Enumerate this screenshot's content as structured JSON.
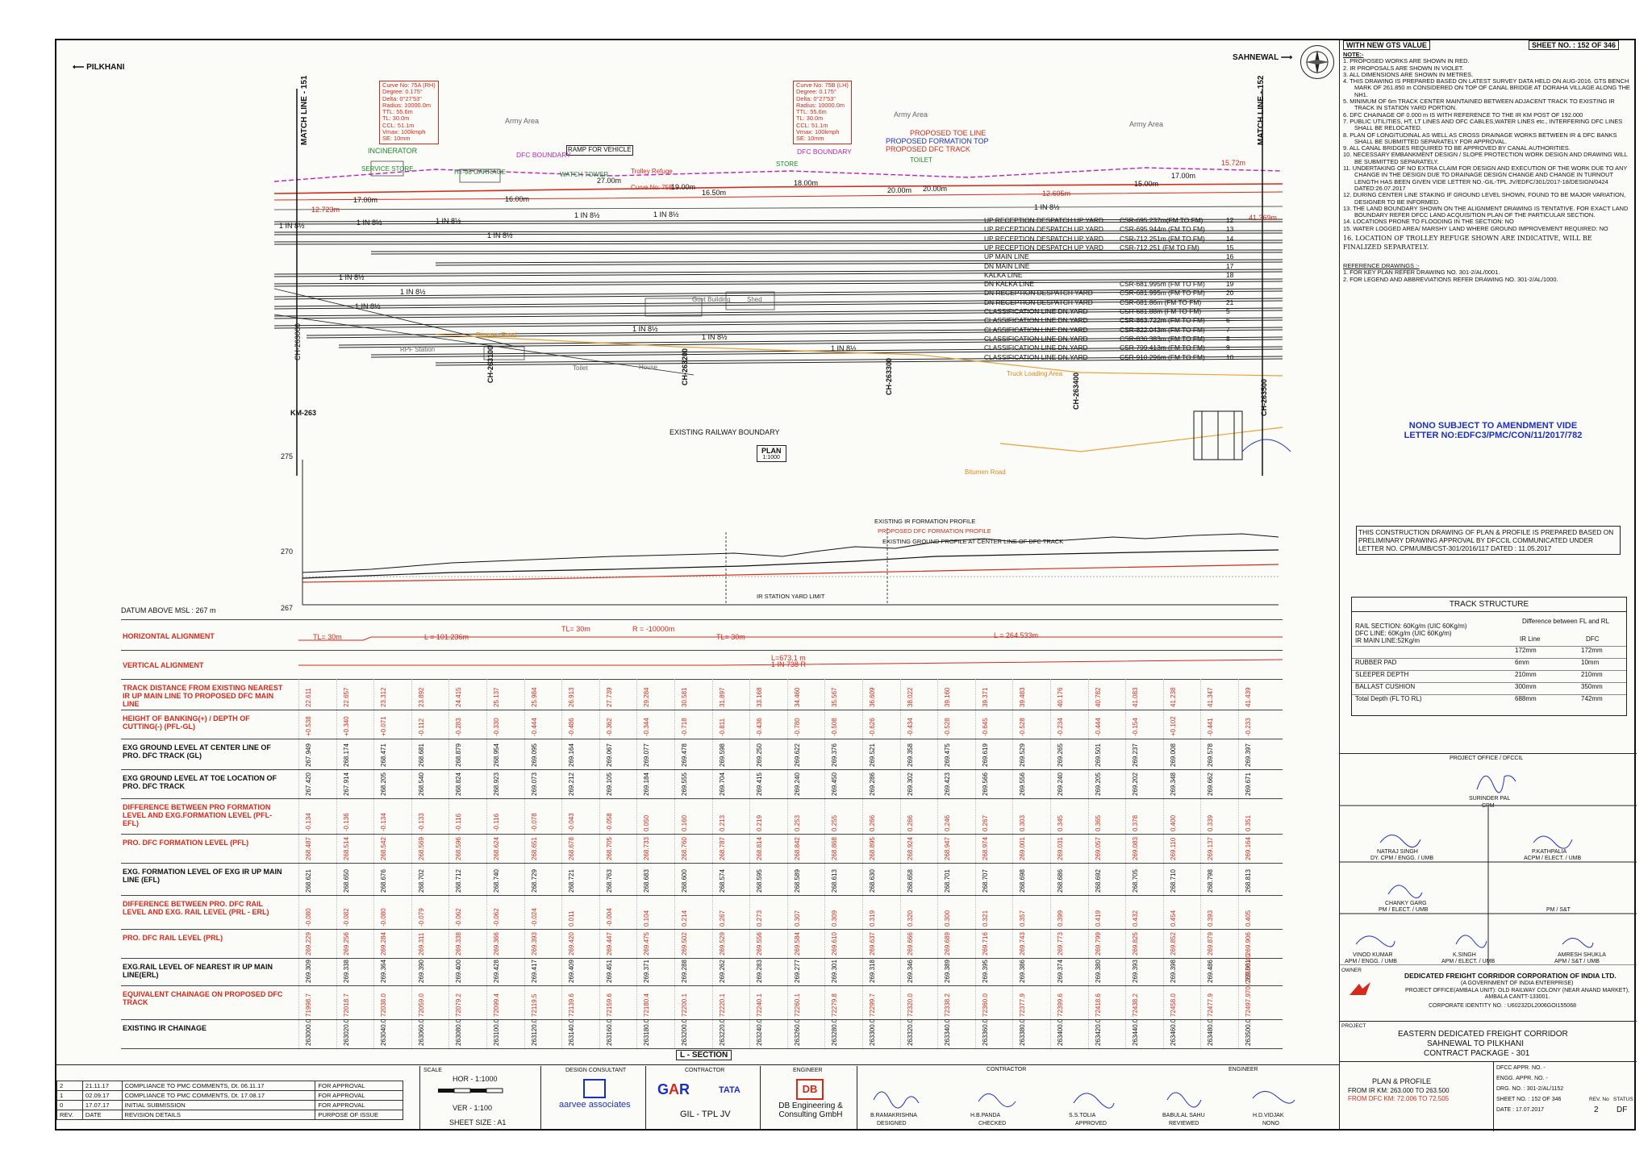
{
  "header": {
    "direction_left": "PILKHANI",
    "direction_right": "SAHNEWAL",
    "gts_label": "WITH NEW GTS VALUE",
    "sheet_no": "SHEET NO. : 152 OF 346"
  },
  "plan": {
    "match_line_left": "MATCH LINE - 151",
    "match_line_right": "MATCH LINE - 152",
    "km_marker": "KM-263",
    "plan_label": "PLAN",
    "plan_scale": "1:1000",
    "existing_boundary": "EXISTING RAILWAY BOUNDARY",
    "curve_a": [
      "Curve No: 75A (RH)",
      "Degree: 0.175°",
      "Delta: 0°27'53\"",
      "Radius: 10000.0m",
      "TTL: 55.6m",
      "TL: 30.0m",
      "CCL: 51.1m",
      "Vmax: 100kmph",
      "SE: 10mm"
    ],
    "curve_b": [
      "Curve No: 75B (LH)",
      "Degree: 0.175°",
      "Delta: 0°27'53\"",
      "Radius: 10000.0m",
      "TTL: 55.6m",
      "TL: 30.0m",
      "CCL: 51.1m",
      "Vmax: 100kmph",
      "SE: 10mm"
    ],
    "labels": [
      "INCINERATOR",
      "SERVICE STORE",
      "HT-98 GARRAGE",
      "RAMP FOR VEHICLE",
      "WATCH TOWER",
      "Trolley Refuge",
      "STORE",
      "DFC BOUNDARY",
      "PROPOSED TOE LINE",
      "PROPOSED FORMATION TOP",
      "PROPOSED DFC TRACK",
      "TOILET",
      "Army Area",
      "Fence",
      "Curve No: 75B",
      "RPF Station",
      "Toilet",
      "House",
      "Truck Loading Area",
      "Bitumen Road",
      "Govt Building",
      "Shed"
    ],
    "dims": [
      "12.723m",
      "17.00m",
      "16.00m",
      "27.00m",
      "19.00m",
      "16.50m",
      "18.00m",
      "20.00m",
      "20.00m",
      "15.00m",
      "17.00m",
      "12.605m",
      "15.72m",
      "41.369m"
    ],
    "tracks": [
      {
        "name": "UP RECEPTION DESPATCH UP YARD",
        "csr": "CSR-695.237m(FM TO FM)",
        "no": "12"
      },
      {
        "name": "UP RECEPTION DESPATCH UP YARD",
        "csr": "CSR-695.944m (FM TO FM)",
        "no": "13"
      },
      {
        "name": "UP RECEPTION DESPATCH UP YARD",
        "csr": "CSR-712.251m (FM TO FM)",
        "no": "14"
      },
      {
        "name": "UP RECEPTION DESPATCH UP YARD",
        "csr": "CSR-712.251 (FM TO FM)",
        "no": "15"
      },
      {
        "name": "UP MAIN LINE",
        "csr": "",
        "no": "16"
      },
      {
        "name": "DN MAIN LINE",
        "csr": "",
        "no": "17"
      },
      {
        "name": "KALKA LINE",
        "csr": "",
        "no": "18"
      },
      {
        "name": "DN KALKA LINE",
        "csr": "CSR-681.995m (FM TO FM)",
        "no": "19"
      },
      {
        "name": "DN RECEPTION DESPATCH YARD",
        "csr": "CSR-681.995m (FM TO FM)",
        "no": "20"
      },
      {
        "name": "DN RECEPTION DESPATCH YARD",
        "csr": "CSR-681.86m (FM TO FM)",
        "no": "21"
      },
      {
        "name": "CLASSIFICATION LINE DN.YARD",
        "csr": "CSR-681.88m (FM TO FM)",
        "no": "5"
      },
      {
        "name": "CLASSIFICATION LINE DN.YARD",
        "csr": "CSR-863.722m (FM TO FM)",
        "no": "6"
      },
      {
        "name": "CLASSIFICATION LINE DN.YARD",
        "csr": "CSR-822.043m (FM TO FM)",
        "no": "7"
      },
      {
        "name": "CLASSIFICATION LINE DN.YARD",
        "csr": "CSR-836.383m (FM TO FM)",
        "no": "8"
      },
      {
        "name": "CLASSIFICATION LINE DN.YARD",
        "csr": "CSR-799.413m (FM TO FM)",
        "no": "9"
      },
      {
        "name": "CLASSIFICATION LINE DN.YARD",
        "csr": "CSR-910.296m (FM TO FM)",
        "no": "10"
      }
    ],
    "chainage_top": [
      "CH-263000",
      "CH-263100",
      "CH-263200",
      "CH-263300",
      "CH-263400",
      "CH-263500"
    ],
    "turnout": "1 IN 8½"
  },
  "profile": {
    "levels": [
      "275",
      "270",
      "267"
    ],
    "datum": "DATUM ABOVE MSL : 267 m",
    "legend": [
      "EXISTING IR FORMATION PROFILE",
      "PROPOSED DFC FORMATION PROFILE",
      "EXISTING GROUND PROFILE AT CENTER LINE OF DFC TRACK"
    ],
    "yard_limit": "IR STATION YARD LIMIT"
  },
  "alignment": {
    "horizontal_label": "HORIZONTAL ALIGNMENT",
    "vertical_label": "VERTICAL ALIGNMENT",
    "h_items": [
      "TL= 30m",
      "L = 101.236m",
      "TL= 30m",
      "R = -10000m",
      "TL= 30m",
      "L = 264.533m"
    ],
    "v_items": [
      "L=673.1 m",
      "1 IN 738 R"
    ]
  },
  "rows": [
    {
      "label": "TRACK DISTANCE FROM EXISTING NEAREST IR UP MAIN LINE TO PROPOSED DFC MAIN LINE",
      "color": "#d42a1c",
      "values": [
        "22.611",
        "22.657",
        "23.312",
        "23.892",
        "24.415",
        "25.137",
        "25.984",
        "26.913",
        "27.739",
        "29.284",
        "30.581",
        "31.897",
        "33.168",
        "34.460",
        "35.567",
        "36.609",
        "38.022",
        "39.160",
        "39.371",
        "39.483",
        "40.176",
        "40.782",
        "41.083",
        "41.238",
        "41.347",
        "41.439"
      ]
    },
    {
      "label": "HEIGHT OF BANKING(+) / DEPTH OF CUTTING(-) (PFL-GL)",
      "color": "#d42a1c",
      "values": [
        "+0.538",
        "+0.340",
        "+0.071",
        "-0.112",
        "-0.283",
        "-0.330",
        "-0.444",
        "-0.486",
        "-0.362",
        "-0.344",
        "-0.718",
        "-0.811",
        "-0.436",
        "-0.780",
        "-0.508",
        "-0.626",
        "-0.434",
        "-0.528",
        "-0.645",
        "-0.528",
        "-0.234",
        "-0.444",
        "-0.154",
        "+0.102",
        "-0.441",
        "-0.233"
      ]
    },
    {
      "label": "EXG GROUND LEVEL AT CENTER LINE OF PRO. DFC TRACK (GL)",
      "color": "#111111",
      "values": [
        "267.949",
        "268.174",
        "268.471",
        "268.681",
        "268.879",
        "268.954",
        "269.095",
        "269.164",
        "269.067",
        "269.077",
        "269.478",
        "269.598",
        "269.250",
        "269.622",
        "269.376",
        "269.521",
        "269.358",
        "269.475",
        "269.619",
        "269.529",
        "269.265",
        "269.501",
        "269.237",
        "269.008",
        "269.578",
        "269.397"
      ]
    },
    {
      "label": "EXG GROUND LEVEL AT TOE LOCATION OF PRO. DFC TRACK",
      "color": "#111111",
      "values": [
        "267.420",
        "267.914",
        "268.205",
        "268.540",
        "268.824",
        "268.923",
        "269.073",
        "269.212",
        "269.105",
        "269.184",
        "269.555",
        "269.704",
        "269.415",
        "269.240",
        "269.450",
        "269.286",
        "269.302",
        "269.423",
        "269.566",
        "269.556",
        "269.240",
        "269.205",
        "269.202",
        "269.348",
        "269.662",
        "269.671"
      ]
    },
    {
      "label": "DIFFERENCE BETWEEN PRO FORMATION LEVEL AND EXG.FORMATION LEVEL (PFL-EFL)",
      "color": "#d42a1c",
      "values": [
        "-0.134",
        "-0.136",
        "-0.134",
        "-0.133",
        "-0.116",
        "-0.116",
        "-0.078",
        "-0.043",
        "-0.058",
        "0.050",
        "0.160",
        "0.213",
        "0.219",
        "0.253",
        "0.255",
        "0.266",
        "0.266",
        "0.246",
        "0.267",
        "0.303",
        "0.345",
        "0.365",
        "0.378",
        "0.400",
        "0.339",
        "0.351"
      ]
    },
    {
      "label": "PRO. DFC FORMATION LEVEL (PFL)",
      "color": "#d42a1c",
      "values": [
        "268.487",
        "268.514",
        "268.542",
        "268.569",
        "268.596",
        "268.624",
        "268.651",
        "268.678",
        "268.705",
        "268.733",
        "268.760",
        "268.787",
        "268.814",
        "268.842",
        "268.868",
        "268.895",
        "268.924",
        "268.947",
        "268.974",
        "269.001",
        "269.031",
        "269.057",
        "269.083",
        "269.110",
        "269.137",
        "269.164"
      ]
    },
    {
      "label": "EXG. FORMATION LEVEL OF EXG IR UP MAIN LINE (EFL)",
      "color": "#111111",
      "values": [
        "268.621",
        "268.650",
        "268.676",
        "268.702",
        "268.712",
        "268.740",
        "268.729",
        "268.721",
        "268.763",
        "268.683",
        "268.600",
        "268.574",
        "268.595",
        "268.589",
        "268.613",
        "268.630",
        "268.658",
        "268.701",
        "268.707",
        "268.698",
        "268.686",
        "268.692",
        "268.705",
        "268.710",
        "268.798",
        "268.813"
      ]
    },
    {
      "label": "DIFFERENCE BETWEEN PRO. DFC RAIL LEVEL AND EXG. RAIL LEVEL (PRL - ERL)",
      "color": "#d42a1c",
      "values": [
        "-0.080",
        "-0.082",
        "-0.080",
        "-0.079",
        "-0.062",
        "-0.062",
        "-0.024",
        "0.011",
        "-0.004",
        "0.104",
        "0.214",
        "0.267",
        "0.273",
        "0.307",
        "0.309",
        "0.319",
        "0.320",
        "0.300",
        "0.321",
        "0.357",
        "0.399",
        "0.419",
        "0.432",
        "0.454",
        "0.393",
        "0.405"
      ]
    },
    {
      "label": "PRO. DFC RAIL LEVEL (PRL)",
      "color": "#d42a1c",
      "values": [
        "269.229",
        "269.256",
        "269.284",
        "269.311",
        "269.338",
        "269.366",
        "269.393",
        "269.420",
        "269.447",
        "269.475",
        "269.502",
        "269.529",
        "269.556",
        "269.584",
        "269.610",
        "269.637",
        "269.666",
        "269.689",
        "269.716",
        "269.743",
        "269.773",
        "269.799",
        "269.825",
        "269.852",
        "269.879",
        "269.906"
      ]
    },
    {
      "label": "EXG.RAIL LEVEL OF NEAREST IR UP MAIN LINE(ERL)",
      "color": "#111111",
      "values": [
        "269.309",
        "269.338",
        "269.364",
        "269.390",
        "269.400",
        "269.428",
        "269.417",
        "269.409",
        "269.451",
        "269.371",
        "269.288",
        "269.262",
        "269.283",
        "269.277",
        "269.301",
        "269.318",
        "269.346",
        "269.389",
        "269.395",
        "269.386",
        "269.374",
        "269.380",
        "269.393",
        "269.398",
        "269.486",
        "269.501"
      ]
    },
    {
      "label": "EQUIVALENT CHAINAGE ON PROPOSED DFC TRACK",
      "color": "#d42a1c",
      "values": [
        "71998.7",
        "72018.7",
        "72038.0",
        "72059.0",
        "72079.2",
        "72099.4",
        "72119.5",
        "72139.6",
        "72159.6",
        "72180.4",
        "72200.1",
        "72220.1",
        "72240.1",
        "72260.1",
        "72279.8",
        "72299.7",
        "72320.0",
        "72338.2",
        "72360.0",
        "72377.9",
        "72399.6",
        "72418.6",
        "72438.2",
        "72458.0",
        "72477.9",
        "72497.970 / 72505.40"
      ]
    },
    {
      "label": "EXISTING IR CHAINAGE",
      "color": "#111111",
      "values": [
        "263000.0",
        "263020.0",
        "263040.0",
        "263060.0",
        "263080.0",
        "263100.0",
        "263120.0",
        "263140.0",
        "263160.0",
        "263180.0",
        "263200.0",
        "263220.0",
        "263240.0",
        "263260.0",
        "263280.0",
        "263300.0",
        "263320.0",
        "263340.0",
        "263360.0",
        "263380.0",
        "263400.0",
        "263420.0",
        "263440.0",
        "263460.0",
        "263480.0",
        "263500.0"
      ]
    }
  ],
  "l_section": "L - SECTION",
  "notes": {
    "title": "NOTE:-",
    "items": [
      "PROPOSED WORKS ARE SHOWN IN RED.",
      "IR PROPOSALS ARE SHOWN IN VIOLET.",
      "ALL DIMENSIONS ARE SHOWN IN METRES.",
      "THIS DRAWING IS PREPARED BASED ON LATEST SURVEY DATA HELD ON AUG-2016. GTS BENCH MARK OF 261.850 m CONSIDERED ON TOP OF CANAL BRIDGE AT DORAHA VILLAGE ALONG THE NH1.",
      "MINIMUM OF 6m TRACK CENTER MAINTAINED BETWEEN ADJACENT TRACK TO EXISTING IR TRACK IN STATION YARD PORTION.",
      "DFC CHAINAGE OF 0.000 m IS WITH REFERENCE TO THE IR KM POST OF 192.000",
      "PUBLIC UTILITIES, HT, LT LINES AND OFC CABLES,WATER LINES etc., INTERFERING DFC LINES SHALL BE RELOCATED.",
      "PLAN OF LONGITUDINAL AS WELL AS CROSS DRAINAGE WORKS BETWEEN IR & DFC BANKS SHALL BE SUBMITTED SEPARATELY FOR APPROVAL.",
      "ALL CANAL BRIDGES REQUIRED TO BE APPROVED BY CANAL AUTHORITIES.",
      "NECESSARY EMBANKMENT DESIGN / SLOPE PROTECTION WORK DESIGN AND DRAWING WILL BE SUBMITTED SEPARATELY.",
      "UNDERTAKING OF NO EXTRA CLAIM FOR DESIGN AND EXECUTION OF THE WORK DUE TO ANY CHANGE IN THE DESIGN DUE TO DRAINAGE DESIGN CHANGE AND CHANGE IN TURNOUT LENGTH HAS BEEN GIVEN VIDE LETTER NO.-GIL-TPL JV/EDFC/301/2017-18/DESIGN/0424 DATED:26.07.2017",
      "DURING CENTER LINE STAKING IF GROUND LEVEL SHOWN, FOUND TO BE MAJOR VARIATION, DESIGNER TO BE INFORMED.",
      "THE LAND BOUNDARY SHOWN ON THE ALIGNMENT DRAWING IS TENTATIVE. FOR EXACT LAND BOUNDARY REFER DFCC LAND ACQUISITION PLAN OF THE PARTICULAR SECTION.",
      "LOCATIONS PRONE TO FLOODING IN THE SECTION: NO",
      "WATER LOGGED AREA/ MARSHY LAND WHERE GROUND IMPROVEMENT REQUIRED: NO"
    ],
    "handwritten": "16. LOCATION OF TROLLEY REFUGE SHOWN ARE INDICATIVE, WILL BE FINALIZED SEPARATELY.",
    "ref_title": "REFERENCE DRAWINGS :-",
    "refs": [
      "FOR KEY PLAN REFER DRAWING NO. 301-2/AL/0001.",
      "FOR LEGEND AND ABBREVIATIONS REFER DRAWING NO. 301-2/AL/1000."
    ]
  },
  "nono": [
    "NONO SUBJECT TO AMENDMENT VIDE",
    "LETTER NO:EDFC3/PMC/CON/11/2017/782"
  ],
  "construction_note": "THIS CONSTRUCTION DRAWING OF PLAN & PROFILE IS PREPARED BASED ON PRELIMINARY DRAWING APPROVAL BY DFCCIL COMMUNICATED UNDER LETTER NO. CPM/UMB/CST-301/2016/117          DATED : 11.05.2017",
  "track_structure": {
    "title": "TRACK STRUCTURE",
    "rail": [
      "RAIL SECTION: 60Kg/m (UIC 60Kg/m)",
      "DFC LINE: 60Kg/m (UIC 60Kg/m)",
      "IR MAIN LINE:52Kg/m"
    ],
    "diff_header": "Difference between FL and RL",
    "col_ir": "IR Line",
    "col_dfc": "DFC",
    "rows": [
      [
        "",
        "172mm",
        "172mm"
      ],
      [
        "RUBBER PAD",
        "6mm",
        "10mm"
      ],
      [
        "SLEEPER DEPTH",
        "210mm",
        "210mm"
      ],
      [
        "BALLAST CUSHION",
        "300mm",
        "350mm"
      ],
      [
        "Total Depth (FL TO RL)",
        "688mm",
        "742mm"
      ]
    ]
  },
  "signatures": {
    "office": "PROJECT OFFICE / DFCCIL",
    "cpm_name": "SURINDER PAL",
    "cpm_title": "CPM",
    "p1_name": "NATRAJ SINGH",
    "p1_title": "DY. CPM / ENGG. / UMB",
    "p2_name": "P.KATHPALIA",
    "p2_title": "ACPM / ELECT. / UMB",
    "p3_name": "CHANKY GARG",
    "p3_title": "PM / ELECT. / UMB",
    "p4_title": "PM / S&T",
    "p5_name": "VINOD KUMAR",
    "p5_title": "APM / ENGG. / UMB",
    "p6_name": "K.SINGH",
    "p6_title": "APM / ELECT. / UMB",
    "p7_name": "AMRESH SHUKLA",
    "p7_title": "APM / S&T / UMB"
  },
  "owner": {
    "label": "OWNER",
    "name": "DEDICATED FREIGHT CORRIDOR CORPORATION OF INDIA LTD.",
    "sub": "(A GOVERNMENT OF INDIA ENTERPRISE)",
    "addr": "PROJECT OFFICE(AMBALA UNIT): OLD RAILWAY COLONY (NEAR ANAND MARKET), AMBALA CANTT-133001.",
    "cin": "CORPORATE IDENTITY NO. : U60232DL2006GOI155068",
    "logo": "dfcc"
  },
  "project": {
    "label": "PROJECT",
    "l1": "EASTERN DEDICATED FREIGHT CORRIDOR",
    "l2": "SAHNEWAL TO PILKHANI",
    "l3": "CONTRACT PACKAGE - 301"
  },
  "drawing": {
    "title": "PLAN & PROFILE",
    "from": "FROM IR KM: 263.000 TO 263.500",
    "from_dfc": "FROM DFC KM: 72.006 TO 72.505",
    "dfcc_appr": "DFCC APPR. NO. -",
    "engg_appr": "ENGG. APPR. NO. -",
    "drg_no": "DRG. NO. :  301-2/AL/1152",
    "sheet": "SHEET NO. :  152 OF 346",
    "date": "DATE :  17.07.2017",
    "rev_label": "REV. No",
    "rev": "2",
    "status_label": "STATUS",
    "status": "DF"
  },
  "revisions": [
    {
      "rev": "2",
      "date": "21.11.17",
      "details": "COMPLIANCE TO PMC COMMENTS, Dt. 06.11.17",
      "purpose": "FOR APPROVAL"
    },
    {
      "rev": "1",
      "date": "02.09.17",
      "details": "COMPLIANCE TO PMC COMMENTS, Dt. 17.08.17",
      "purpose": "FOR APPROVAL"
    },
    {
      "rev": "0",
      "date": "17.07.17",
      "details": "INITIAL SUBMISSION",
      "purpose": "FOR APPROVAL"
    }
  ],
  "rev_headers": [
    "REV.",
    "DATE",
    "REVISION DETAILS",
    "PURPOSE OF ISSUE"
  ],
  "scale": {
    "label": "SCALE",
    "hor": "HOR - 1:1000",
    "ver": "VER - 1:100",
    "size": "SHEET SIZE : A1",
    "marks": [
      "0",
      "10",
      "20",
      "30",
      "40m"
    ]
  },
  "consultants": {
    "design": "DESIGN CONSULTANT",
    "design_name": "aarvee associates",
    "contractor": "CONTRACTOR",
    "contractor_name": "GIL - TPL JV",
    "engineer": "ENGINEER",
    "engineer_name": "DB Engineering & Consulting GmbH",
    "contractor2": "CONTRACTOR",
    "engineer2": "ENGINEER",
    "sign_names": [
      "B.RAMAKRISHNA",
      "H.B.PANDA",
      "S.S.TOLIA",
      "BABULAL SAHU",
      "H.D.VIDJAK"
    ],
    "sign_roles": [
      "DESIGNED",
      "CHECKED",
      "APPROVED",
      "REVIEWED",
      "NONO"
    ]
  }
}
